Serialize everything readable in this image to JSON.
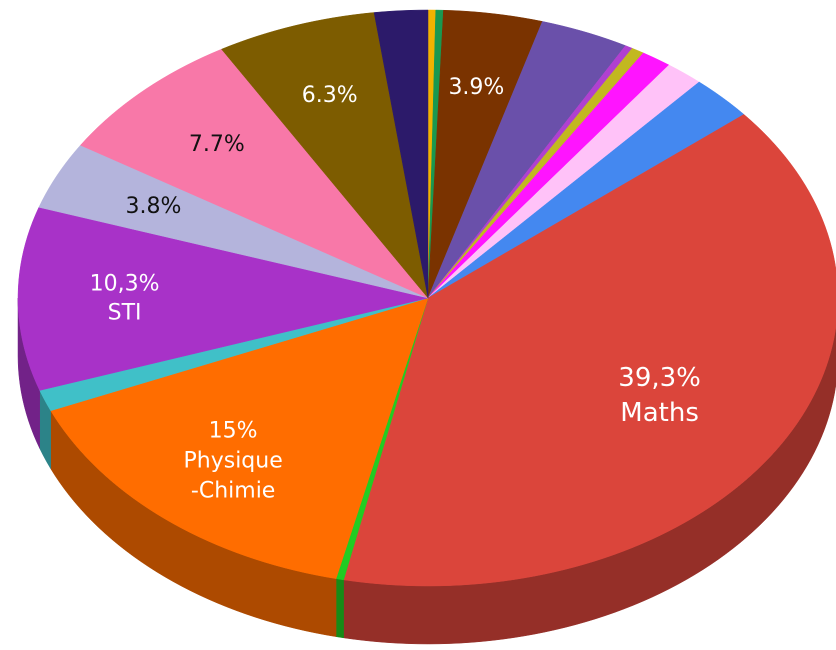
{
  "chart_data": {
    "type": "pie",
    "categories": [
      null,
      null,
      null,
      null,
      null,
      null,
      null,
      null,
      null,
      "Maths",
      null,
      "Physique\n-Chimie",
      null,
      "STI",
      null,
      null,
      null,
      null
    ],
    "values": [
      0.3,
      0.3,
      3.9,
      3.5,
      0.3,
      0.5,
      1.2,
      1.5,
      2.5,
      39.3,
      0.3,
      15,
      1.2,
      10.3,
      3.8,
      7.7,
      6.3,
      2.1
    ],
    "value_labels": [
      null,
      null,
      "3.9%",
      null,
      null,
      null,
      null,
      null,
      null,
      "39,3%",
      null,
      "15%",
      null,
      "10,3%",
      "3.8%",
      "7.7%",
      "6.3%",
      null
    ],
    "colors": [
      "#f2b200",
      "#1a9850",
      "#7a3300",
      "#6a50aa",
      "#b040d0",
      "#c2b820",
      "#ff14ff",
      "#ffc2f8",
      "#4488f0",
      "#db453b",
      "#22cc22",
      "#ff6d00",
      "#40c0c8",
      "#a832c8",
      "#b4b4dc",
      "#f878a8",
      "#7d5c00",
      "#2c1a6a"
    ]
  }
}
